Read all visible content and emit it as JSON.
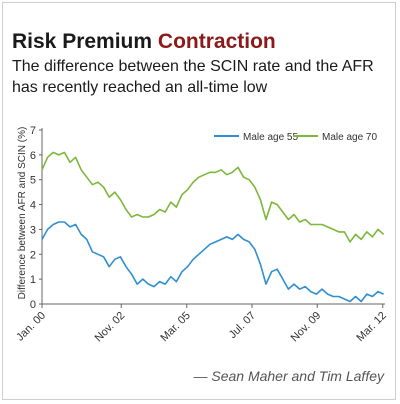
{
  "header": {
    "title_part1": "Risk Premium",
    "title_part2": "Contraction",
    "subtitle": "The difference between the SCIN rate and the AFR has recently reached an all-time low"
  },
  "credit": "— Sean Maher and Tim Laffey",
  "colors": {
    "male_55": "#2f8fd0",
    "male_70": "#7cb83a",
    "title_accent": "#8b1a1a"
  },
  "chart_data": {
    "type": "line",
    "ylabel": "Difference between AFR and SCIN (%)",
    "ylim": [
      0,
      7
    ],
    "yticks": [
      0,
      1,
      2,
      3,
      4,
      5,
      6,
      7
    ],
    "xlim": [
      2000.0,
      2012.25
    ],
    "xticks": [
      {
        "label": "Jan. 00",
        "value": 2000.0
      },
      {
        "label": "Nov. 02",
        "value": 2002.83
      },
      {
        "label": "Mar. 05",
        "value": 2005.17
      },
      {
        "label": "Jul. 07",
        "value": 2007.5
      },
      {
        "label": "Nov. 09",
        "value": 2009.83
      },
      {
        "label": "Mar. 12",
        "value": 2012.17
      }
    ],
    "grid": false,
    "legend_position": "top-right",
    "series": [
      {
        "name": "Male age 55",
        "color": "#2f8fd0",
        "points": [
          [
            2000.0,
            2.6
          ],
          [
            2000.2,
            3.0
          ],
          [
            2000.4,
            3.2
          ],
          [
            2000.6,
            3.3
          ],
          [
            2000.8,
            3.3
          ],
          [
            2001.0,
            3.1
          ],
          [
            2001.2,
            3.2
          ],
          [
            2001.4,
            2.8
          ],
          [
            2001.6,
            2.6
          ],
          [
            2001.8,
            2.1
          ],
          [
            2002.0,
            2.0
          ],
          [
            2002.2,
            1.9
          ],
          [
            2002.4,
            1.5
          ],
          [
            2002.6,
            1.8
          ],
          [
            2002.8,
            1.9
          ],
          [
            2003.0,
            1.5
          ],
          [
            2003.2,
            1.2
          ],
          [
            2003.4,
            0.8
          ],
          [
            2003.6,
            1.0
          ],
          [
            2003.8,
            0.8
          ],
          [
            2004.0,
            0.7
          ],
          [
            2004.2,
            0.9
          ],
          [
            2004.4,
            0.8
          ],
          [
            2004.6,
            1.1
          ],
          [
            2004.8,
            0.9
          ],
          [
            2005.0,
            1.3
          ],
          [
            2005.2,
            1.5
          ],
          [
            2005.4,
            1.8
          ],
          [
            2005.6,
            2.0
          ],
          [
            2005.8,
            2.2
          ],
          [
            2006.0,
            2.4
          ],
          [
            2006.2,
            2.5
          ],
          [
            2006.4,
            2.6
          ],
          [
            2006.6,
            2.7
          ],
          [
            2006.8,
            2.6
          ],
          [
            2007.0,
            2.8
          ],
          [
            2007.2,
            2.6
          ],
          [
            2007.4,
            2.5
          ],
          [
            2007.6,
            2.2
          ],
          [
            2007.8,
            1.6
          ],
          [
            2008.0,
            0.8
          ],
          [
            2008.2,
            1.3
          ],
          [
            2008.4,
            1.4
          ],
          [
            2008.6,
            1.0
          ],
          [
            2008.8,
            0.6
          ],
          [
            2009.0,
            0.8
          ],
          [
            2009.2,
            0.6
          ],
          [
            2009.4,
            0.7
          ],
          [
            2009.6,
            0.5
          ],
          [
            2009.8,
            0.4
          ],
          [
            2010.0,
            0.6
          ],
          [
            2010.2,
            0.4
          ],
          [
            2010.4,
            0.3
          ],
          [
            2010.6,
            0.3
          ],
          [
            2010.8,
            0.2
          ],
          [
            2011.0,
            0.1
          ],
          [
            2011.2,
            0.3
          ],
          [
            2011.4,
            0.1
          ],
          [
            2011.6,
            0.4
          ],
          [
            2011.8,
            0.3
          ],
          [
            2012.0,
            0.5
          ],
          [
            2012.2,
            0.4
          ]
        ]
      },
      {
        "name": "Male age 70",
        "color": "#7cb83a",
        "points": [
          [
            2000.0,
            5.4
          ],
          [
            2000.2,
            5.9
          ],
          [
            2000.4,
            6.1
          ],
          [
            2000.6,
            6.0
          ],
          [
            2000.8,
            6.1
          ],
          [
            2001.0,
            5.7
          ],
          [
            2001.2,
            5.9
          ],
          [
            2001.4,
            5.4
          ],
          [
            2001.6,
            5.1
          ],
          [
            2001.8,
            4.8
          ],
          [
            2002.0,
            4.9
          ],
          [
            2002.2,
            4.7
          ],
          [
            2002.4,
            4.3
          ],
          [
            2002.6,
            4.5
          ],
          [
            2002.8,
            4.2
          ],
          [
            2003.0,
            3.8
          ],
          [
            2003.2,
            3.5
          ],
          [
            2003.4,
            3.6
          ],
          [
            2003.6,
            3.5
          ],
          [
            2003.8,
            3.5
          ],
          [
            2004.0,
            3.6
          ],
          [
            2004.2,
            3.8
          ],
          [
            2004.4,
            3.7
          ],
          [
            2004.6,
            4.1
          ],
          [
            2004.8,
            3.9
          ],
          [
            2005.0,
            4.4
          ],
          [
            2005.2,
            4.6
          ],
          [
            2005.4,
            4.9
          ],
          [
            2005.6,
            5.1
          ],
          [
            2005.8,
            5.2
          ],
          [
            2006.0,
            5.3
          ],
          [
            2006.2,
            5.3
          ],
          [
            2006.4,
            5.4
          ],
          [
            2006.6,
            5.2
          ],
          [
            2006.8,
            5.3
          ],
          [
            2007.0,
            5.5
          ],
          [
            2007.2,
            5.1
          ],
          [
            2007.4,
            5.0
          ],
          [
            2007.6,
            4.7
          ],
          [
            2007.8,
            4.2
          ],
          [
            2008.0,
            3.4
          ],
          [
            2008.2,
            4.1
          ],
          [
            2008.4,
            4.0
          ],
          [
            2008.6,
            3.7
          ],
          [
            2008.8,
            3.4
          ],
          [
            2009.0,
            3.6
          ],
          [
            2009.2,
            3.3
          ],
          [
            2009.4,
            3.4
          ],
          [
            2009.6,
            3.2
          ],
          [
            2009.8,
            3.2
          ],
          [
            2010.0,
            3.2
          ],
          [
            2010.2,
            3.1
          ],
          [
            2010.4,
            3.0
          ],
          [
            2010.6,
            2.9
          ],
          [
            2010.8,
            2.9
          ],
          [
            2011.0,
            2.5
          ],
          [
            2011.2,
            2.8
          ],
          [
            2011.4,
            2.6
          ],
          [
            2011.6,
            2.9
          ],
          [
            2011.8,
            2.7
          ],
          [
            2012.0,
            3.0
          ],
          [
            2012.2,
            2.8
          ]
        ]
      }
    ]
  }
}
